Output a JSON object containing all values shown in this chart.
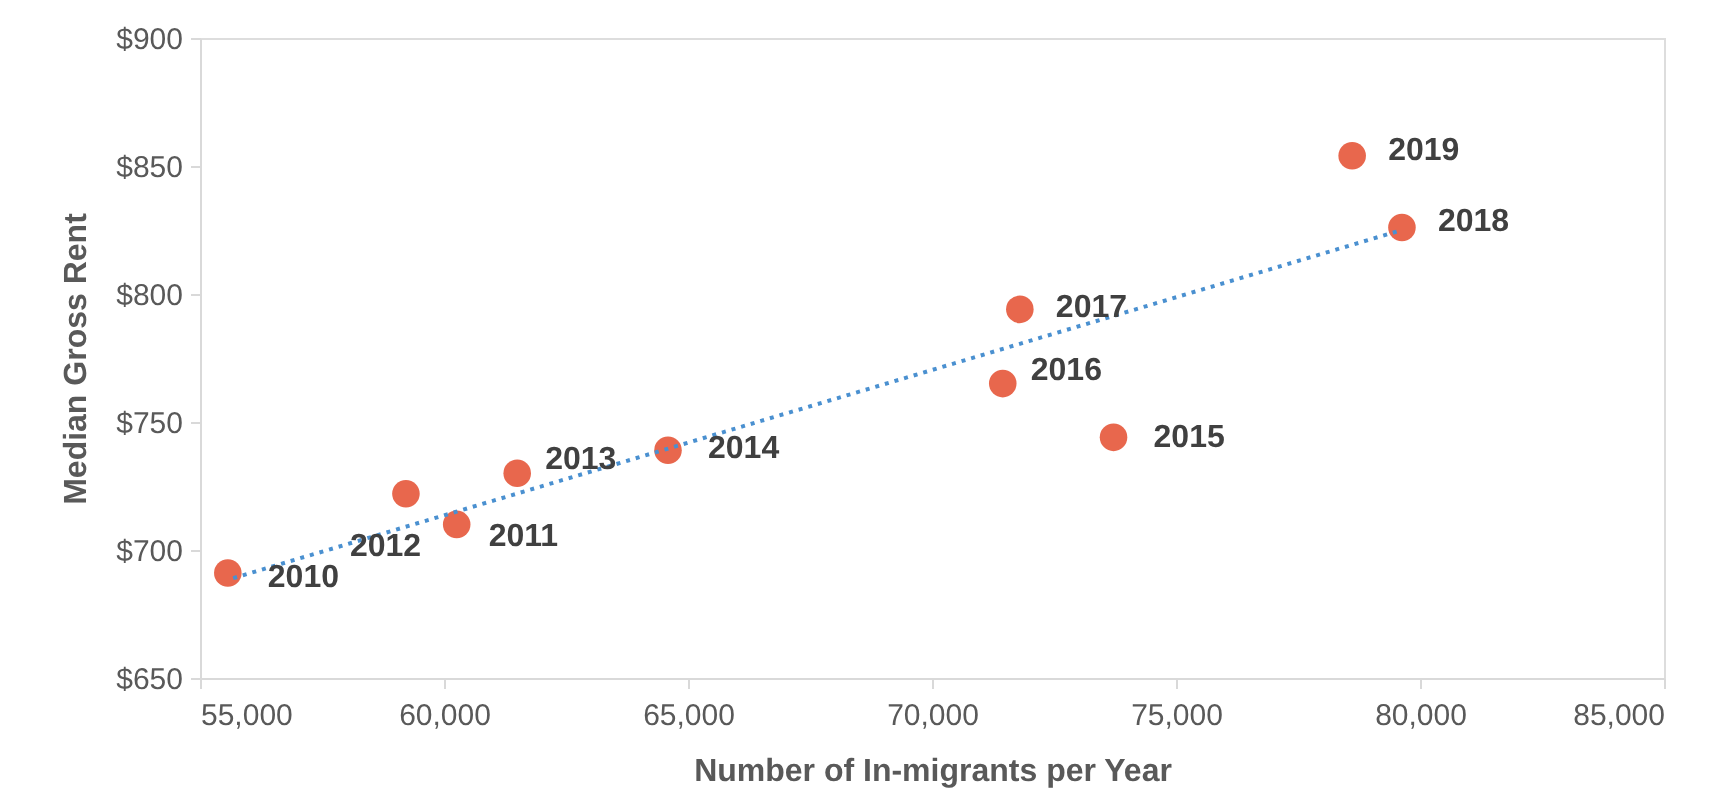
{
  "chart_data": {
    "type": "scatter",
    "xlabel": "Number of In-migrants per Year",
    "ylabel": "Median Gross Rent",
    "xlim": [
      55000,
      85000
    ],
    "xticks": [
      {
        "value": 55000,
        "label": "55,000"
      },
      {
        "value": 60000,
        "label": "60,000"
      },
      {
        "value": 65000,
        "label": "65,000"
      },
      {
        "value": 70000,
        "label": "70,000"
      },
      {
        "value": 75000,
        "label": "75,000"
      },
      {
        "value": 80000,
        "label": "80,000"
      },
      {
        "value": 85000,
        "label": "85,000"
      }
    ],
    "ylim": [
      650,
      900
    ],
    "yticks": [
      {
        "value": 650,
        "label": "$650"
      },
      {
        "value": 700,
        "label": "$700"
      },
      {
        "value": 750,
        "label": "$750"
      },
      {
        "value": 800,
        "label": "$800"
      },
      {
        "value": 850,
        "label": "$850"
      },
      {
        "value": 900,
        "label": "$900"
      }
    ],
    "grid": false,
    "marker": "circle",
    "series": [
      {
        "color": "#e8674d",
        "x": [
          55570,
          60260,
          59220,
          61500,
          64590,
          73720,
          71450,
          71800,
          79630,
          78610
        ],
        "values": [
          691,
          710,
          722,
          730,
          739,
          744,
          765,
          794,
          826,
          854
        ]
      },
      {
        "type": "line",
        "color": "#4a90d0",
        "line_style": "dotted",
        "marker": "none",
        "x": [
          55680,
          79630
        ],
        "values": [
          689,
          825
        ]
      }
    ],
    "annotations": [
      {
        "text": "2010",
        "x": 55570,
        "y": 691
      },
      {
        "text": "2011",
        "x": 60260,
        "y": 710
      },
      {
        "text": "2012",
        "x": 59220,
        "y": 722
      },
      {
        "text": "2013",
        "x": 61500,
        "y": 730
      },
      {
        "text": "2014",
        "x": 64590,
        "y": 739
      },
      {
        "text": "2015",
        "x": 73720,
        "y": 744
      },
      {
        "text": "2016",
        "x": 71450,
        "y": 765
      },
      {
        "text": "2017",
        "x": 71800,
        "y": 794
      },
      {
        "text": "2018",
        "x": 79630,
        "y": 826
      },
      {
        "text": "2019",
        "x": 78610,
        "y": 854
      }
    ]
  }
}
